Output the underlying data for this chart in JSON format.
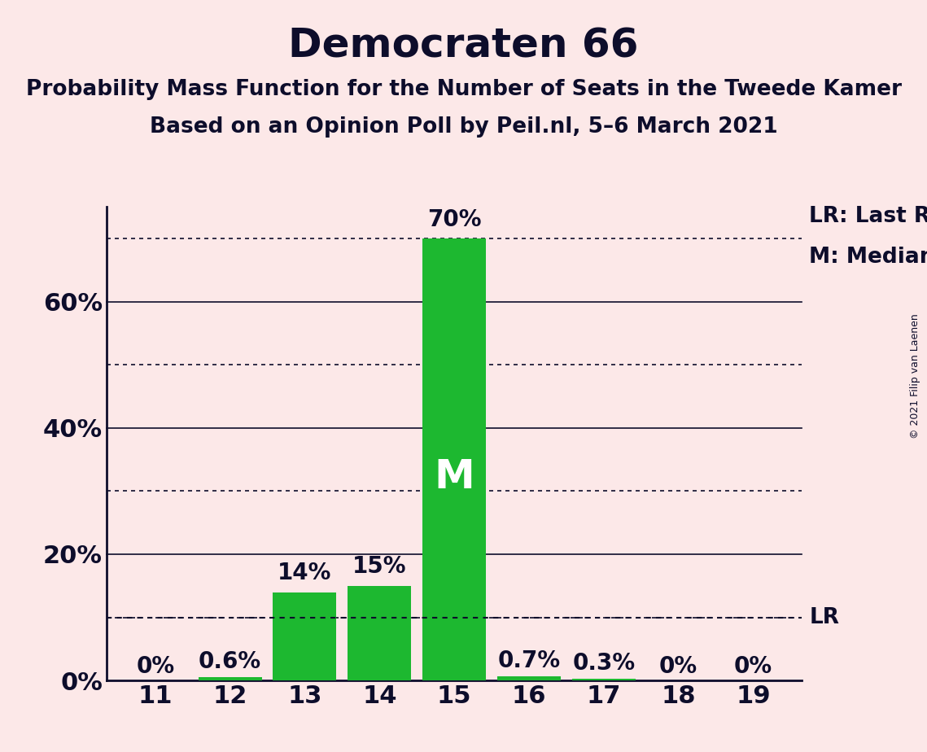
{
  "title": "Democraten 66",
  "subtitle1": "Probability Mass Function for the Number of Seats in the Tweede Kamer",
  "subtitle2": "Based on an Opinion Poll by Peil.nl, 5–6 March 2021",
  "copyright": "© 2021 Filip van Laenen",
  "categories": [
    11,
    12,
    13,
    14,
    15,
    16,
    17,
    18,
    19
  ],
  "values": [
    0.0,
    0.6,
    14.0,
    15.0,
    70.0,
    0.7,
    0.3,
    0.0,
    0.0
  ],
  "bar_labels": [
    "0%",
    "0.6%",
    "14%",
    "15%",
    "70%",
    "0.7%",
    "0.3%",
    "0%",
    "0%"
  ],
  "bar_color": "#1db830",
  "background_color": "#fce8e8",
  "text_color": "#0d0d2b",
  "median_seat": 15,
  "median_label": "M",
  "lr_value": 10.0,
  "lr_label": "LR",
  "legend_lr": "LR: Last Result",
  "legend_m": "M: Median",
  "ylim": [
    0,
    75
  ],
  "solid_gridlines": [
    20,
    40,
    60
  ],
  "dotted_gridlines": [
    10,
    30,
    50,
    70
  ],
  "title_fontsize": 36,
  "subtitle_fontsize": 19,
  "tick_fontsize": 22,
  "bar_label_fontsize": 20,
  "legend_fontsize": 19,
  "median_fontsize": 36
}
